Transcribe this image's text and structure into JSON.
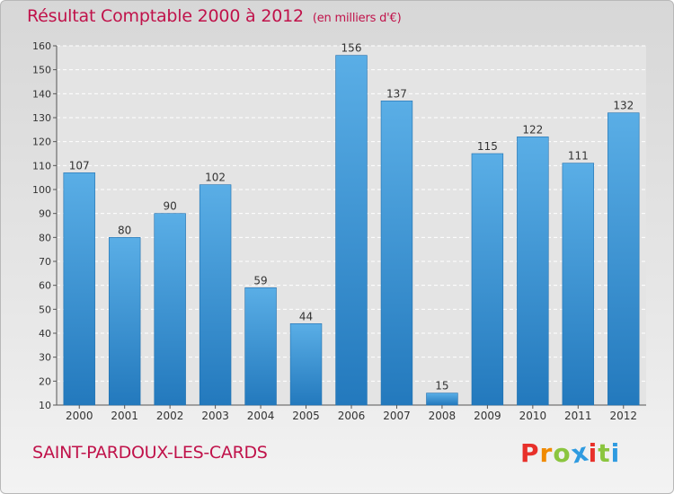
{
  "header": {
    "title": "Résultat Comptable 2000 à 2012",
    "subtitle": "(en milliers d'€)"
  },
  "footer": {
    "city": "SAINT-PARDOUX-LES-CARDS",
    "logo_text": "Proxiti"
  },
  "colors": {
    "title": "#c0124a",
    "bar_top": "#5aaee6",
    "bar_bottom": "#2379bd",
    "logo": [
      "#e8302a",
      "#f08a00",
      "#8bc53f",
      "#2f9be0",
      "#e8302a",
      "#8bc53f",
      "#2f9be0"
    ]
  },
  "chart_data": {
    "type": "bar",
    "title": "Résultat Comptable 2000 à 2012",
    "subtitle": "(en milliers d'€)",
    "categories": [
      "2000",
      "2001",
      "2002",
      "2003",
      "2004",
      "2005",
      "2006",
      "2007",
      "2008",
      "2009",
      "2010",
      "2011",
      "2012"
    ],
    "values": [
      107,
      80,
      90,
      102,
      59,
      44,
      156,
      137,
      15,
      115,
      122,
      111,
      132
    ],
    "ylim": [
      10,
      160
    ],
    "yticks": [
      10,
      20,
      30,
      40,
      50,
      60,
      70,
      80,
      90,
      100,
      110,
      120,
      130,
      140,
      150,
      160
    ],
    "grid": true,
    "legend": "none"
  }
}
